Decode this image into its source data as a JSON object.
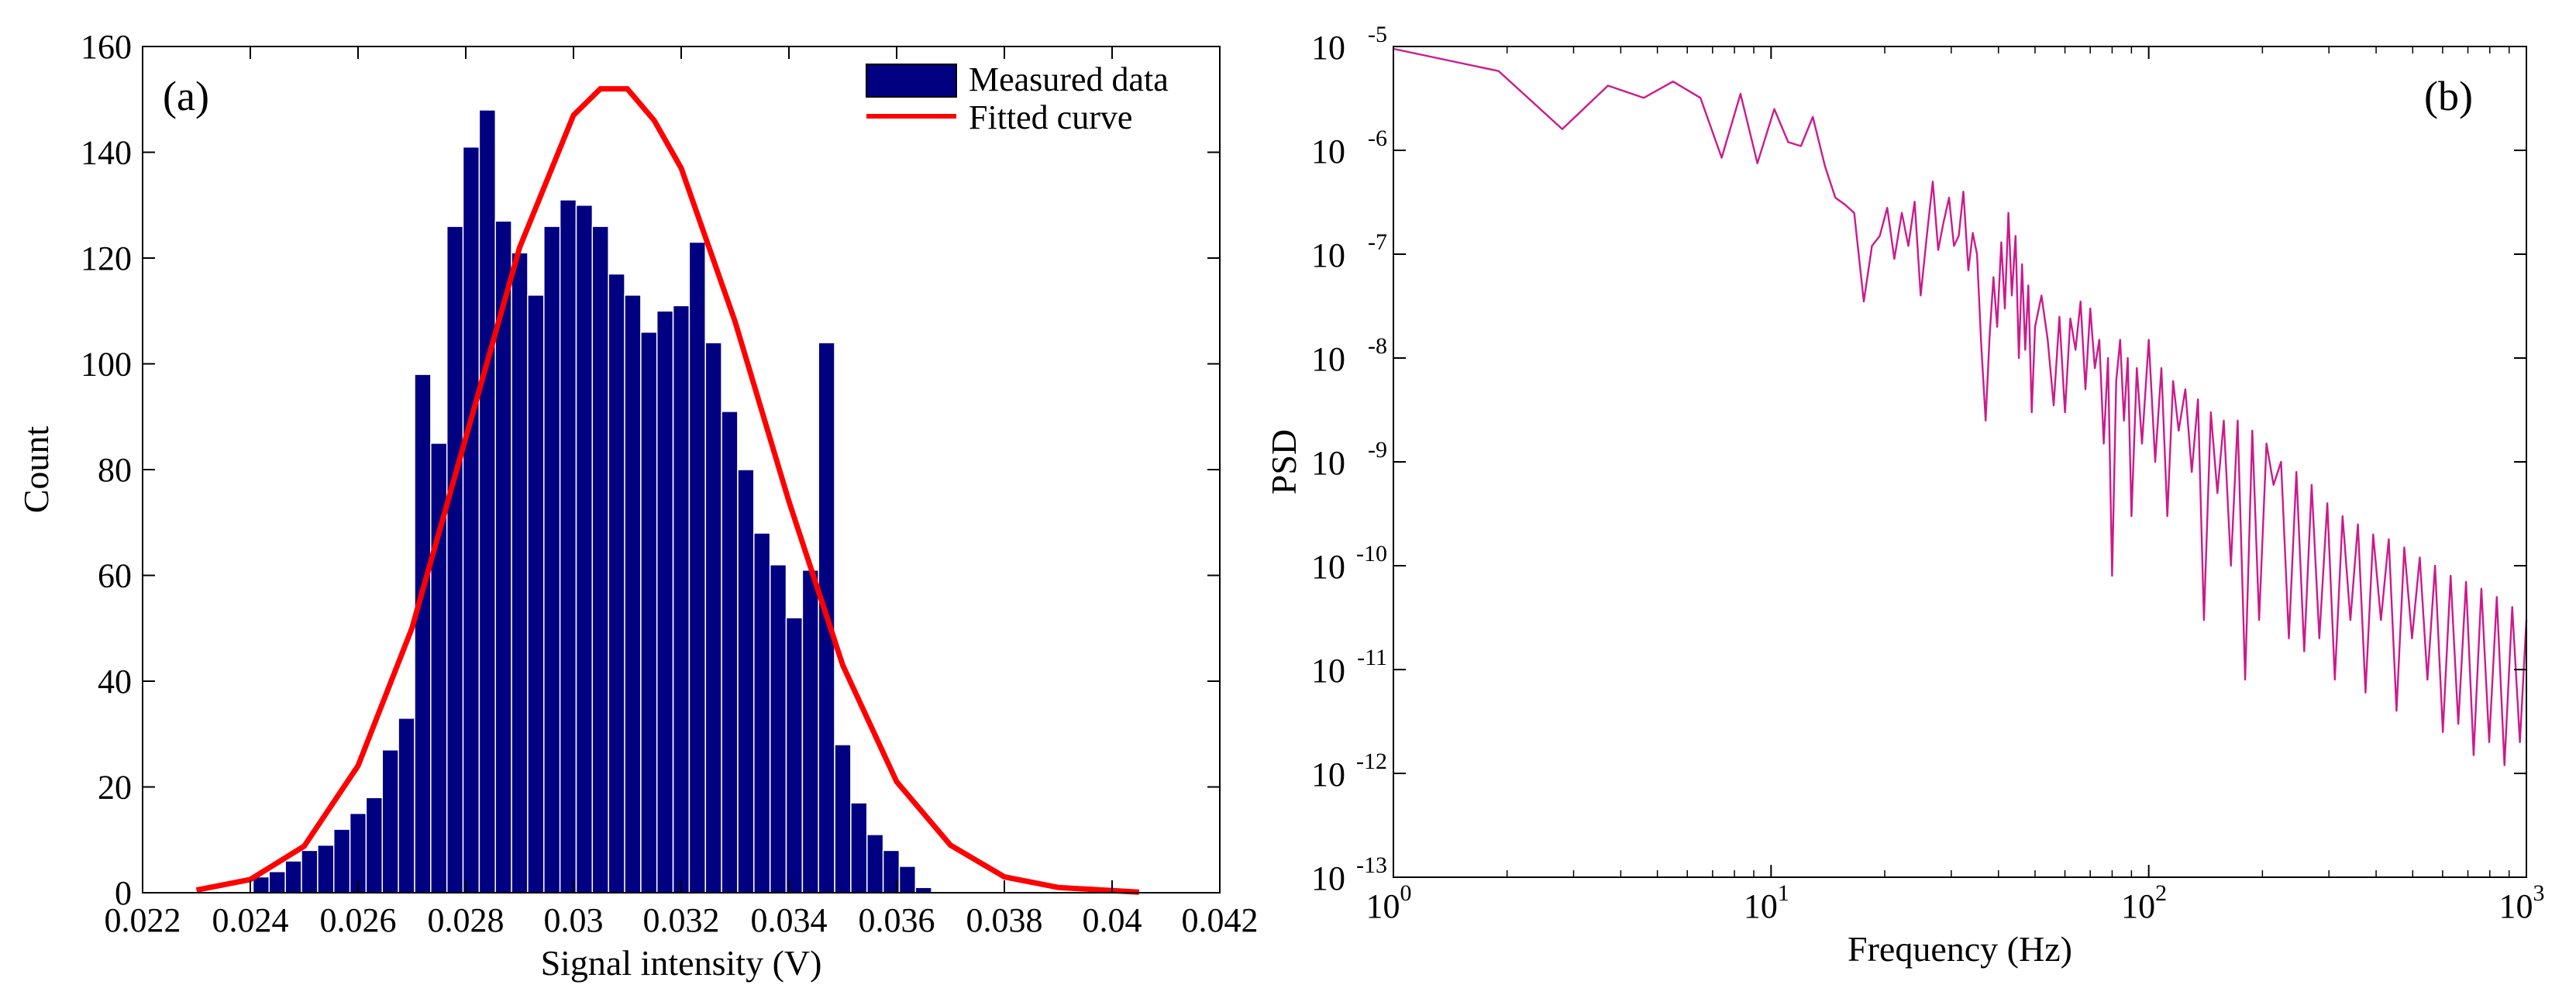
{
  "chart_data": [
    {
      "type": "bar",
      "panel_label": "(a)",
      "xlabel": "Signal intensity (V)",
      "ylabel": "Count",
      "xlim": [
        0.022,
        0.042
      ],
      "ylim": [
        0,
        160
      ],
      "xticks": [
        0.022,
        0.024,
        0.026,
        0.028,
        0.03,
        0.032,
        0.034,
        0.036,
        0.038,
        0.04,
        0.042
      ],
      "xtick_labels": [
        "0.022",
        "0.024",
        "0.026",
        "0.028",
        "0.03",
        "0.032",
        "0.034",
        "0.036",
        "0.038",
        "0.04",
        "0.042"
      ],
      "yticks": [
        0,
        20,
        40,
        60,
        80,
        100,
        120,
        140,
        160
      ],
      "ytick_labels": [
        "0",
        "20",
        "40",
        "60",
        "80",
        "100",
        "120",
        "140",
        "160"
      ],
      "legend": {
        "position": "top-right",
        "entries": [
          "Measured data",
          "Fitted curve"
        ]
      },
      "bar_width": 0.0003,
      "series": [
        {
          "name": "Measured data",
          "kind": "bar",
          "color": "#000080",
          "x": [
            0.0242,
            0.0245,
            0.0248,
            0.0251,
            0.0254,
            0.0257,
            0.026,
            0.0263,
            0.0266,
            0.0269,
            0.0272,
            0.0275,
            0.0278,
            0.0281,
            0.0284,
            0.0287,
            0.029,
            0.0293,
            0.0296,
            0.0299,
            0.0302,
            0.0305,
            0.0308,
            0.0311,
            0.0314,
            0.0317,
            0.032,
            0.0323,
            0.0326,
            0.0329,
            0.0332,
            0.0335,
            0.0338,
            0.0341,
            0.0344,
            0.0347,
            0.035,
            0.0353,
            0.0356,
            0.0359,
            0.0362,
            0.0365,
            0.0368,
            0.0371,
            0.0374,
            0.0377,
            0.038
          ],
          "values": [
            3,
            4,
            6,
            8,
            9,
            12,
            15,
            18,
            27,
            33,
            98,
            85,
            126,
            141,
            148,
            127,
            121,
            113,
            126,
            131,
            130,
            126,
            117,
            113,
            106,
            110,
            111,
            123,
            104,
            91,
            80,
            68,
            62,
            52,
            61,
            104,
            28,
            17,
            11,
            8,
            5,
            1,
            0,
            0,
            0,
            0,
            0
          ]
        },
        {
          "name": "Fitted curve",
          "kind": "line",
          "color": "#ff0000",
          "x": [
            0.023,
            0.024,
            0.025,
            0.026,
            0.027,
            0.028,
            0.029,
            0.03,
            0.0305,
            0.031,
            0.0315,
            0.032,
            0.033,
            0.034,
            0.035,
            0.036,
            0.037,
            0.038,
            0.039,
            0.0405
          ],
          "values": [
            0.5,
            2.5,
            8.8,
            24,
            50,
            86,
            122,
            147,
            152,
            152,
            146,
            137,
            108,
            74,
            43,
            21,
            9,
            3,
            1,
            0.1
          ]
        }
      ]
    },
    {
      "type": "line",
      "panel_label": "(b)",
      "xlabel": "Frequency (Hz)",
      "ylabel": "PSD",
      "xscale": "log",
      "yscale": "log",
      "xlim": [
        1,
        1000
      ],
      "ylim": [
        1e-13,
        1e-05
      ],
      "xtick_bases": [
        "10",
        "10",
        "10",
        "10"
      ],
      "xtick_exponents": [
        "0",
        "1",
        "2",
        "3"
      ],
      "ytick_bases": [
        "10",
        "10",
        "10",
        "10",
        "10",
        "10",
        "10",
        "10",
        "10"
      ],
      "ytick_exponents": [
        "-13",
        "-12",
        "-11",
        "-10",
        "-9",
        "-8",
        "-7",
        "-6",
        "-5"
      ],
      "series": [
        {
          "name": "PSD",
          "color": "#cc1a8c",
          "x": [
            1,
            1.9,
            2.8,
            3.7,
            4.6,
            5.5,
            6.5,
            7.4,
            8.3,
            9.2,
            10.2,
            11.1,
            12,
            12.9,
            13.9,
            14.8,
            15.7,
            16.6,
            17.6,
            18.5,
            19.4,
            20.3,
            21.2,
            22.2,
            23.1,
            24,
            24.9,
            25.9,
            26.8,
            27.7,
            28.6,
            29.6,
            30.5,
            31.4,
            32.3,
            33.3,
            34.2,
            35.1,
            36,
            37,
            37.9,
            38.8,
            39.7,
            40.7,
            41.6,
            42.5,
            43.4,
            44.4,
            45.3,
            46.2,
            47.1,
            48,
            49,
            50,
            52,
            54,
            56,
            58,
            60,
            62,
            64,
            66,
            68,
            70,
            72,
            74,
            76,
            78,
            80,
            82,
            84,
            86,
            88,
            90,
            93,
            96,
            100,
            104,
            108,
            112,
            116,
            120,
            125,
            130,
            135,
            140,
            146,
            152,
            158,
            165,
            172,
            180,
            188,
            196,
            205,
            214,
            224,
            235,
            246,
            258,
            270,
            283,
            297,
            311,
            326,
            342,
            358,
            375,
            393,
            412,
            432,
            453,
            475,
            498,
            522,
            547,
            573,
            601,
            630,
            660,
            692,
            725,
            760,
            797,
            835,
            875,
            917,
            961,
            1000
          ],
          "values": [
            9.5e-06,
            5.8e-06,
            1.6e-06,
            4.2e-06,
            3.2e-06,
            4.6e-06,
            3.2e-06,
            8.5e-07,
            3.5e-06,
            7.5e-07,
            2.5e-06,
            1.2e-06,
            1.1e-06,
            2.1e-06,
            7e-07,
            3.5e-07,
            3e-07,
            2.5e-07,
            3.5e-08,
            1.2e-07,
            1.5e-07,
            2.8e-07,
            9e-08,
            2.5e-07,
            1.2e-07,
            3.2e-07,
            4e-08,
            1.6e-07,
            5e-07,
            1.1e-07,
            2e-07,
            3.5e-07,
            1.2e-07,
            1.5e-07,
            4e-07,
            7e-08,
            1.6e-07,
            1e-07,
            1.4e-08,
            2.5e-09,
            1.6e-08,
            6e-08,
            2e-08,
            1.3e-07,
            3e-08,
            2.5e-07,
            4e-08,
            1.5e-07,
            1e-08,
            8e-08,
            1.2e-08,
            5e-08,
            3e-09,
            2e-08,
            4e-08,
            1.5e-08,
            3.5e-09,
            2.5e-08,
            3e-09,
            2.4e-08,
            1.2e-08,
            3.5e-08,
            5e-09,
            3e-08,
            8e-09,
            1.5e-08,
            1.5e-09,
            1e-08,
            8e-11,
            6e-09,
            1.5e-08,
            2.5e-09,
            1e-08,
            3e-10,
            8e-09,
            1.5e-09,
            1.5e-08,
            1e-09,
            8e-09,
            3e-10,
            6e-09,
            2e-09,
            5e-09,
            8e-10,
            4e-09,
            3e-11,
            3e-09,
            5e-10,
            2.5e-09,
            1e-10,
            2.5e-09,
            8e-12,
            2e-09,
            3e-11,
            1.5e-09,
            6e-10,
            1e-09,
            2e-11,
            8e-10,
            1.5e-11,
            6e-10,
            2e-11,
            4e-10,
            8e-12,
            3e-10,
            3e-11,
            2.5e-10,
            6e-12,
            2e-10,
            3e-11,
            1.8e-10,
            4e-12,
            1.5e-10,
            2e-11,
            1.2e-10,
            8e-12,
            1e-10,
            2.5e-12,
            8e-11,
            3e-12,
            7e-11,
            1.5e-12,
            6e-11,
            2e-12,
            5e-11,
            1.2e-12,
            4e-11,
            2e-12,
            3e-11
          ]
        }
      ]
    }
  ]
}
